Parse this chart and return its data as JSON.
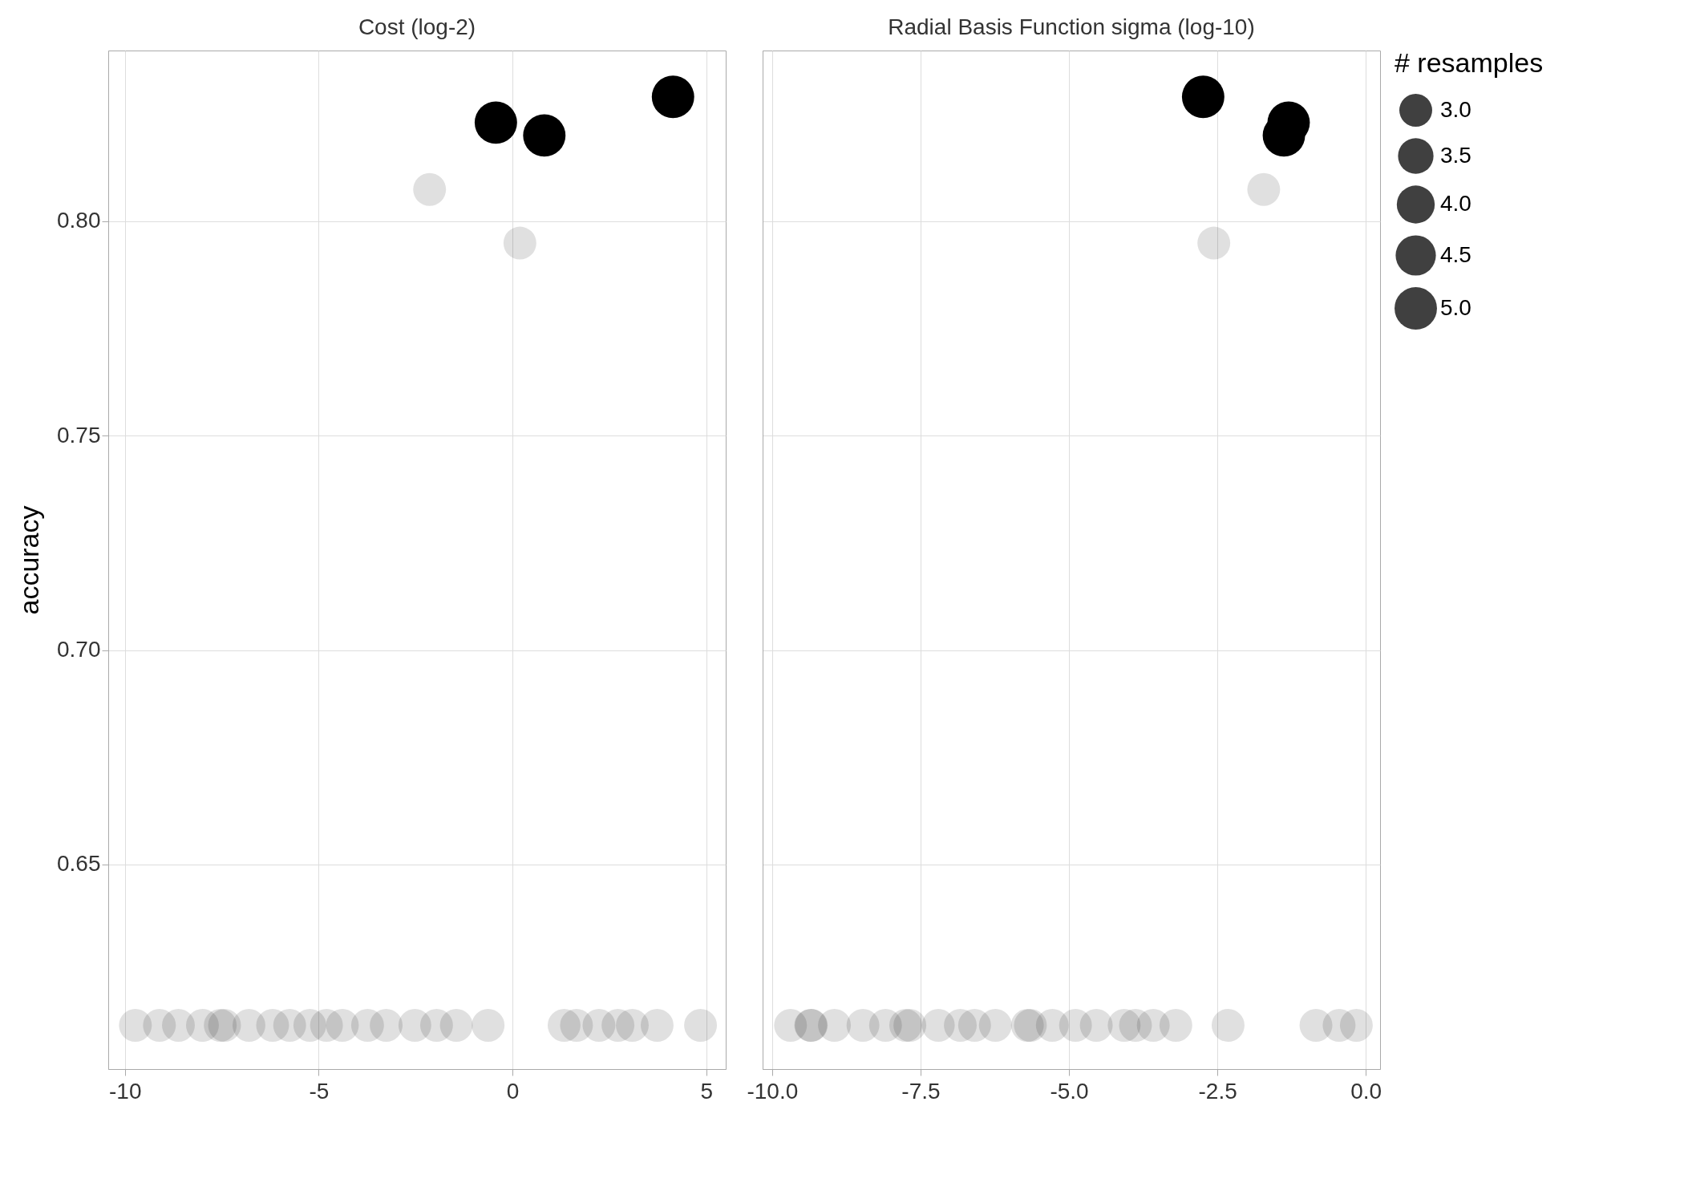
{
  "chart_data": [
    {
      "type": "bubble",
      "title": "Cost (log-2)",
      "ylabel": "accuracy",
      "grid": true,
      "xlim": [
        -10.43,
        5.5
      ],
      "ylim": [
        0.6023,
        0.8398
      ],
      "xticks": [
        -10,
        -5,
        0,
        5
      ],
      "yticks": [
        {
          "value": 0.65,
          "label": "0.65"
        },
        {
          "value": 0.7,
          "label": "0.70"
        },
        {
          "value": 0.75,
          "label": "0.75"
        },
        {
          "value": 0.8,
          "label": "0.80"
        }
      ],
      "series": [
        {
          "color": "#000000",
          "x": [
            -9.73,
            -9.11,
            -8.62,
            -8.0,
            -7.54,
            -7.43,
            -6.8,
            -6.19,
            -5.75,
            -5.23,
            -4.8,
            -4.39,
            -3.74,
            -3.26,
            -2.52,
            -1.96,
            -1.45,
            -0.63,
            1.33,
            1.65,
            2.23,
            2.72,
            3.09,
            3.73,
            4.85,
            -2.14,
            0.19,
            -0.43,
            0.82,
            4.14
          ],
          "values": [
            0.6125,
            0.6125,
            0.6125,
            0.6125,
            0.6125,
            0.6125,
            0.6125,
            0.6125,
            0.6125,
            0.6125,
            0.6125,
            0.6125,
            0.6125,
            0.6125,
            0.6125,
            0.6125,
            0.6125,
            0.6125,
            0.6125,
            0.6125,
            0.6125,
            0.6125,
            0.6125,
            0.6125,
            0.6125,
            0.8074,
            0.7949,
            0.823,
            0.82,
            0.829
          ],
          "sizes": [
            0.6,
            0.6,
            0.6,
            0.6,
            0.6,
            0.6,
            0.6,
            0.6,
            0.6,
            0.6,
            0.6,
            0.6,
            0.6,
            0.6,
            0.6,
            0.6,
            0.6,
            0.6,
            0.6,
            0.6,
            0.6,
            0.6,
            0.6,
            0.6,
            0.6,
            0.6,
            0.6,
            1,
            1,
            1
          ]
        }
      ]
    },
    {
      "type": "bubble",
      "title": "Radial Basis Function sigma (log-10)",
      "legend_title": "# resamples",
      "grid": true,
      "tick_labels": "x",
      "xlim": [
        -10.16,
        0.24
      ],
      "ylim": [
        0.6023,
        0.8398
      ],
      "xticks": [
        {
          "value": -10,
          "label": "-10.0"
        },
        {
          "value": -7.5,
          "label": "-7.5"
        },
        {
          "value": -5,
          "label": "-5.0"
        },
        {
          "value": -2.5,
          "label": "-2.5"
        },
        {
          "value": 0,
          "label": "0.0"
        }
      ],
      "yticks": [
        0.65,
        0.7,
        0.75,
        0.8
      ],
      "size_legend": [
        {
          "value": 3,
          "label": "3.0"
        },
        {
          "value": 3.5,
          "label": "3.5"
        },
        {
          "value": 4,
          "label": "4.0"
        },
        {
          "value": 4.5,
          "label": "4.5"
        },
        {
          "value": 5,
          "label": "5.0"
        }
      ],
      "series": [
        {
          "color": "#000000",
          "x": [
            -9.69,
            -9.35,
            -9.34,
            -8.95,
            -8.47,
            -8.09,
            -7.75,
            -7.68,
            -7.2,
            -6.83,
            -6.59,
            -6.24,
            -5.7,
            -5.65,
            -5.28,
            -4.89,
            -4.54,
            -4.07,
            -3.88,
            -3.58,
            -3.2,
            -2.32,
            -0.84,
            -0.45,
            -0.16,
            -1.72,
            -2.56,
            -1.3,
            -1.38,
            -2.74
          ],
          "values": [
            0.6125,
            0.6125,
            0.6125,
            0.6125,
            0.6125,
            0.6125,
            0.6125,
            0.6125,
            0.6125,
            0.6125,
            0.6125,
            0.6125,
            0.6125,
            0.6125,
            0.6125,
            0.6125,
            0.6125,
            0.6125,
            0.6125,
            0.6125,
            0.6125,
            0.6125,
            0.6125,
            0.6125,
            0.6125,
            0.8074,
            0.7949,
            0.823,
            0.82,
            0.829
          ],
          "sizes": [
            3,
            3,
            3,
            3,
            3,
            3,
            3,
            3,
            3,
            3,
            3,
            3,
            3,
            3,
            3,
            3,
            3,
            3,
            3,
            3,
            3,
            3,
            3,
            3,
            3,
            3,
            3,
            5,
            5,
            5
          ]
        }
      ]
    }
  ]
}
